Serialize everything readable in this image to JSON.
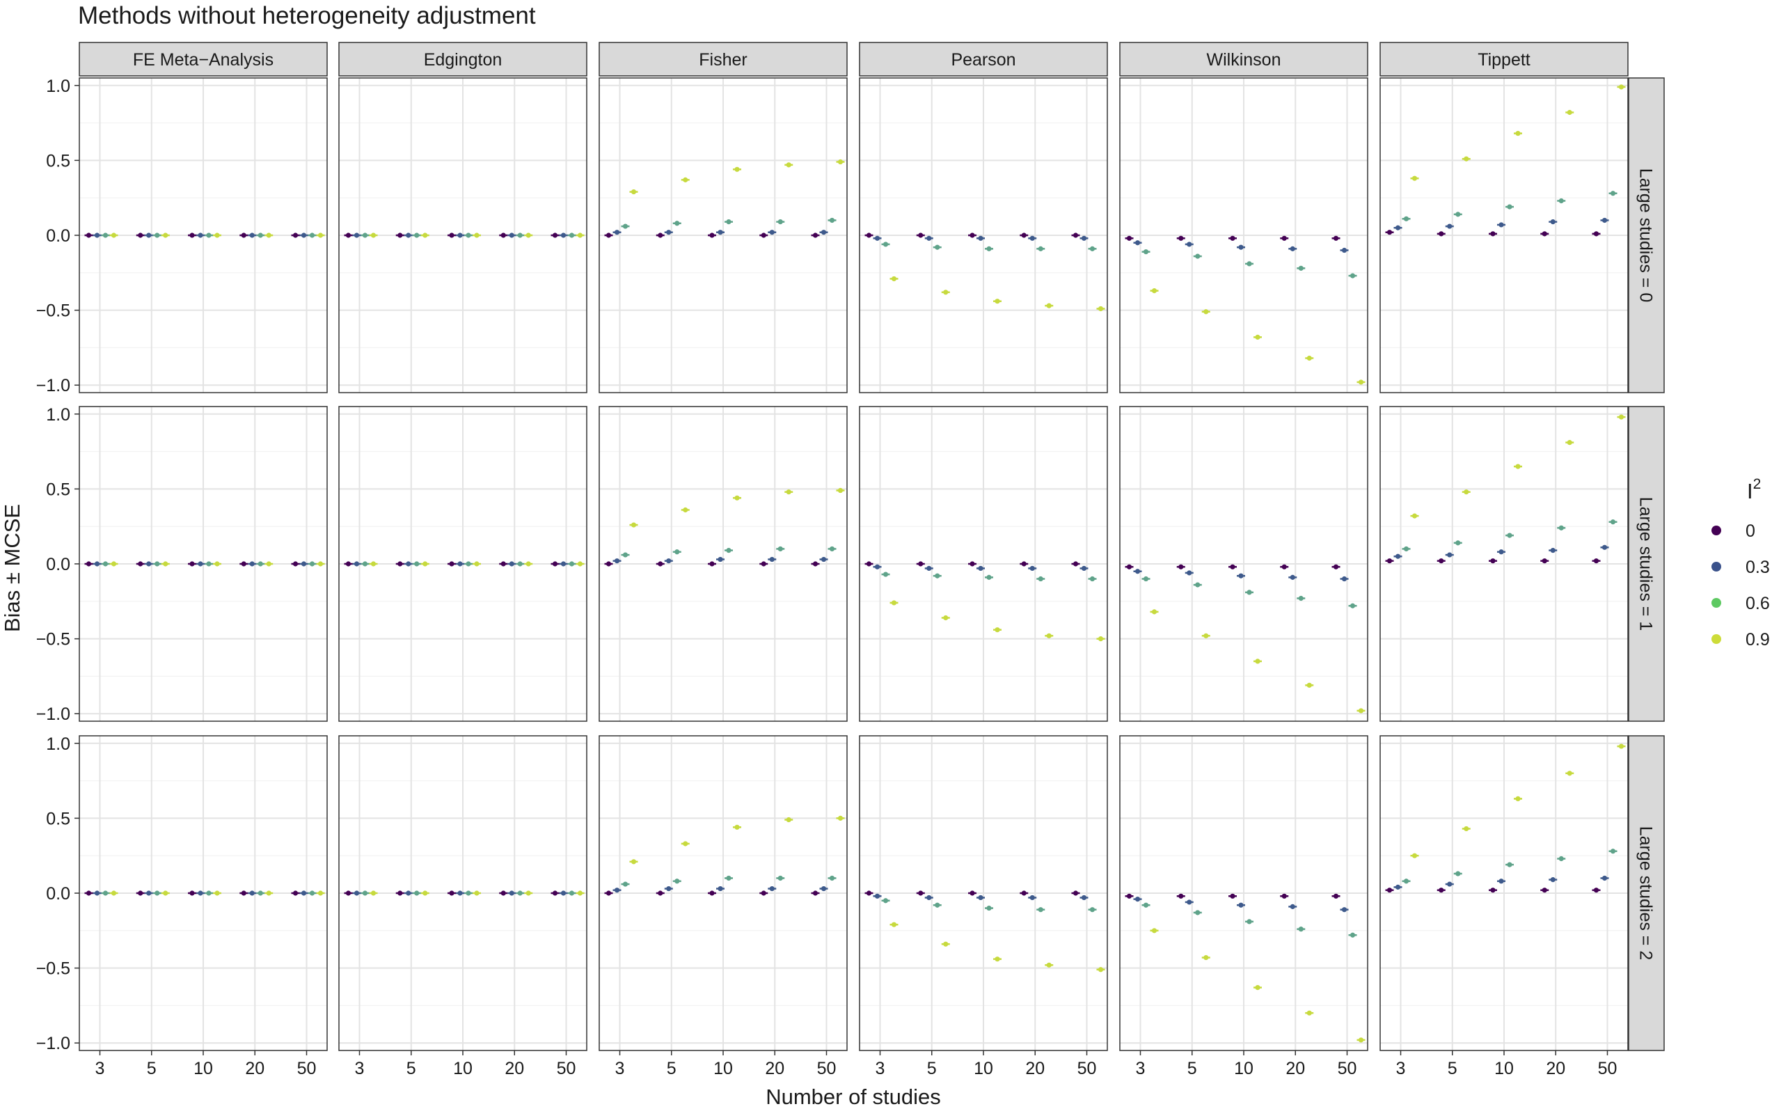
{
  "chart_data": {
    "type": "scatter",
    "title": "Methods without heterogeneity adjustment",
    "xlabel": "Number of studies",
    "ylabel": "Bias ± MCSE",
    "x_categories": [
      "3",
      "5",
      "10",
      "20",
      "50"
    ],
    "ylim": [
      -1.05,
      1.05
    ],
    "y_ticks": [
      "1.0",
      "0.5",
      "0.0",
      "−0.5",
      "−1.0"
    ],
    "y_tick_values": [
      1.0,
      0.5,
      0.0,
      -0.5,
      -1.0
    ],
    "grid": true,
    "columns": [
      "FE Meta−Analysis",
      "Edgington",
      "Fisher",
      "Pearson",
      "Wilkinson",
      "Tippett"
    ],
    "rows": [
      "Large studies = 0",
      "Large studies = 1",
      "Large studies = 2"
    ],
    "legend": {
      "title_base": "I",
      "title_sup": "2",
      "placement": "right",
      "levels": [
        "0",
        "0.3",
        "0.6",
        "0.9"
      ],
      "colors": [
        "#440154",
        "#3b528b",
        "#5ec962",
        "#cddc39"
      ]
    },
    "series_colors": [
      "#440154",
      "#3e5a8c",
      "#5fa38a",
      "#c7da3e"
    ],
    "panels": [
      [
        [
          [
            0,
            0,
            0,
            0
          ],
          [
            0,
            0,
            0,
            0
          ],
          [
            0,
            0,
            0,
            0
          ],
          [
            0,
            0,
            0,
            0
          ],
          [
            0,
            0,
            0,
            0
          ]
        ],
        [
          [
            0,
            0,
            0,
            0
          ],
          [
            0,
            0,
            0,
            0
          ],
          [
            0,
            0,
            0,
            0
          ],
          [
            0,
            0,
            0,
            0
          ],
          [
            0,
            0,
            0,
            0
          ]
        ],
        [
          [
            0,
            0.02,
            0.06,
            0.29
          ],
          [
            0,
            0.02,
            0.08,
            0.37
          ],
          [
            0,
            0.02,
            0.09,
            0.44
          ],
          [
            0,
            0.02,
            0.09,
            0.47
          ],
          [
            0,
            0.02,
            0.1,
            0.49
          ]
        ],
        [
          [
            0,
            -0.02,
            -0.06,
            -0.29
          ],
          [
            0,
            -0.02,
            -0.08,
            -0.38
          ],
          [
            0,
            -0.02,
            -0.09,
            -0.44
          ],
          [
            0,
            -0.02,
            -0.09,
            -0.47
          ],
          [
            0,
            -0.02,
            -0.09,
            -0.49
          ]
        ],
        [
          [
            -0.02,
            -0.05,
            -0.11,
            -0.37
          ],
          [
            -0.02,
            -0.06,
            -0.14,
            -0.51
          ],
          [
            -0.02,
            -0.08,
            -0.19,
            -0.68
          ],
          [
            -0.02,
            -0.09,
            -0.22,
            -0.82
          ],
          [
            -0.02,
            -0.1,
            -0.27,
            -0.98
          ]
        ],
        [
          [
            0.02,
            0.05,
            0.11,
            0.38
          ],
          [
            0.01,
            0.06,
            0.14,
            0.51
          ],
          [
            0.01,
            0.07,
            0.19,
            0.68
          ],
          [
            0.01,
            0.09,
            0.23,
            0.82
          ],
          [
            0.01,
            0.1,
            0.28,
            0.99
          ]
        ]
      ],
      [
        [
          [
            0,
            0,
            0,
            0
          ],
          [
            0,
            0,
            0,
            0
          ],
          [
            0,
            0,
            0,
            0
          ],
          [
            0,
            0,
            0,
            0
          ],
          [
            0,
            0,
            0,
            0
          ]
        ],
        [
          [
            0,
            0,
            0,
            0
          ],
          [
            0,
            0,
            0,
            0
          ],
          [
            0,
            0,
            0,
            0
          ],
          [
            0,
            0,
            0,
            0
          ],
          [
            0,
            0,
            0,
            0
          ]
        ],
        [
          [
            0,
            0.02,
            0.06,
            0.26
          ],
          [
            0,
            0.02,
            0.08,
            0.36
          ],
          [
            0,
            0.03,
            0.09,
            0.44
          ],
          [
            0,
            0.03,
            0.1,
            0.48
          ],
          [
            0,
            0.03,
            0.1,
            0.49
          ]
        ],
        [
          [
            0,
            -0.02,
            -0.07,
            -0.26
          ],
          [
            0,
            -0.03,
            -0.08,
            -0.36
          ],
          [
            0,
            -0.03,
            -0.09,
            -0.44
          ],
          [
            0,
            -0.03,
            -0.1,
            -0.48
          ],
          [
            0,
            -0.03,
            -0.1,
            -0.5
          ]
        ],
        [
          [
            -0.02,
            -0.05,
            -0.1,
            -0.32
          ],
          [
            -0.02,
            -0.06,
            -0.14,
            -0.48
          ],
          [
            -0.02,
            -0.08,
            -0.19,
            -0.65
          ],
          [
            -0.02,
            -0.09,
            -0.23,
            -0.81
          ],
          [
            -0.02,
            -0.1,
            -0.28,
            -0.98
          ]
        ],
        [
          [
            0.02,
            0.05,
            0.1,
            0.32
          ],
          [
            0.02,
            0.06,
            0.14,
            0.48
          ],
          [
            0.02,
            0.08,
            0.19,
            0.65
          ],
          [
            0.02,
            0.09,
            0.24,
            0.81
          ],
          [
            0.02,
            0.11,
            0.28,
            0.98
          ]
        ]
      ],
      [
        [
          [
            0,
            0,
            0,
            0
          ],
          [
            0,
            0,
            0,
            0
          ],
          [
            0,
            0,
            0,
            0
          ],
          [
            0,
            0,
            0,
            0
          ],
          [
            0,
            0,
            0,
            0
          ]
        ],
        [
          [
            0,
            0,
            0,
            0
          ],
          [
            0,
            0,
            0,
            0
          ],
          [
            0,
            0,
            0,
            0
          ],
          [
            0,
            0,
            0,
            0
          ],
          [
            0,
            0,
            0,
            0
          ]
        ],
        [
          [
            0,
            0.02,
            0.06,
            0.21
          ],
          [
            0,
            0.03,
            0.08,
            0.33
          ],
          [
            0,
            0.03,
            0.1,
            0.44
          ],
          [
            0,
            0.03,
            0.1,
            0.49
          ],
          [
            0,
            0.03,
            0.1,
            0.5
          ]
        ],
        [
          [
            0,
            -0.02,
            -0.05,
            -0.21
          ],
          [
            0,
            -0.03,
            -0.08,
            -0.34
          ],
          [
            0,
            -0.03,
            -0.1,
            -0.44
          ],
          [
            0,
            -0.03,
            -0.11,
            -0.48
          ],
          [
            0,
            -0.03,
            -0.11,
            -0.51
          ]
        ],
        [
          [
            -0.02,
            -0.04,
            -0.08,
            -0.25
          ],
          [
            -0.02,
            -0.06,
            -0.13,
            -0.43
          ],
          [
            -0.02,
            -0.08,
            -0.19,
            -0.63
          ],
          [
            -0.02,
            -0.09,
            -0.24,
            -0.8
          ],
          [
            -0.02,
            -0.11,
            -0.28,
            -0.98
          ]
        ],
        [
          [
            0.02,
            0.04,
            0.08,
            0.25
          ],
          [
            0.02,
            0.06,
            0.13,
            0.43
          ],
          [
            0.02,
            0.08,
            0.19,
            0.63
          ],
          [
            0.02,
            0.09,
            0.23,
            0.8
          ],
          [
            0.02,
            0.1,
            0.28,
            0.98
          ]
        ]
      ]
    ]
  }
}
